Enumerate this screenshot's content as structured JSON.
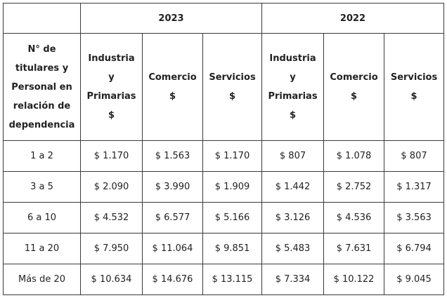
{
  "table": {
    "row_header": "N° de titulares y Personal en relación de dependencia",
    "row_header_lines": [
      "N° de",
      "titulares y",
      "Personal en",
      "relación de",
      "dependencia"
    ],
    "years": [
      "2023",
      "2022"
    ],
    "columns": [
      {
        "lines": [
          "Industria",
          "y",
          "Primarias",
          "$"
        ]
      },
      {
        "lines": [
          "Comercio",
          "$"
        ]
      },
      {
        "lines": [
          "Servicios",
          "$"
        ]
      }
    ],
    "rows": [
      {
        "label": "1 a 2",
        "values": [
          "$ 1.170",
          "$ 1.563",
          "$ 1.170",
          "$ 807",
          "$ 1.078",
          "$ 807"
        ]
      },
      {
        "label": "3 a 5",
        "values": [
          "$ 2.090",
          "$ 3.990",
          "$ 1.909",
          "$ 1.442",
          "$ 2.752",
          "$ 1.317"
        ]
      },
      {
        "label": "6 a 10",
        "values": [
          "$ 4.532",
          "$ 6.577",
          "$ 5.166",
          "$ 3.126",
          "$ 4.536",
          "$ 3.563"
        ]
      },
      {
        "label": "11 a 20",
        "values": [
          "$ 7.950",
          "$ 11.064",
          "$ 9.851",
          "$ 5.483",
          "$ 7.631",
          "$ 6.794"
        ]
      },
      {
        "label": "Más de 20",
        "values": [
          "$ 10.634",
          "$ 14.676",
          "$ 13.115",
          "$ 7.334",
          "$ 10.122",
          "$ 9.045"
        ]
      }
    ]
  },
  "colors": {
    "border": "#3a3a3a",
    "text": "#222222",
    "background": "#ffffff"
  }
}
